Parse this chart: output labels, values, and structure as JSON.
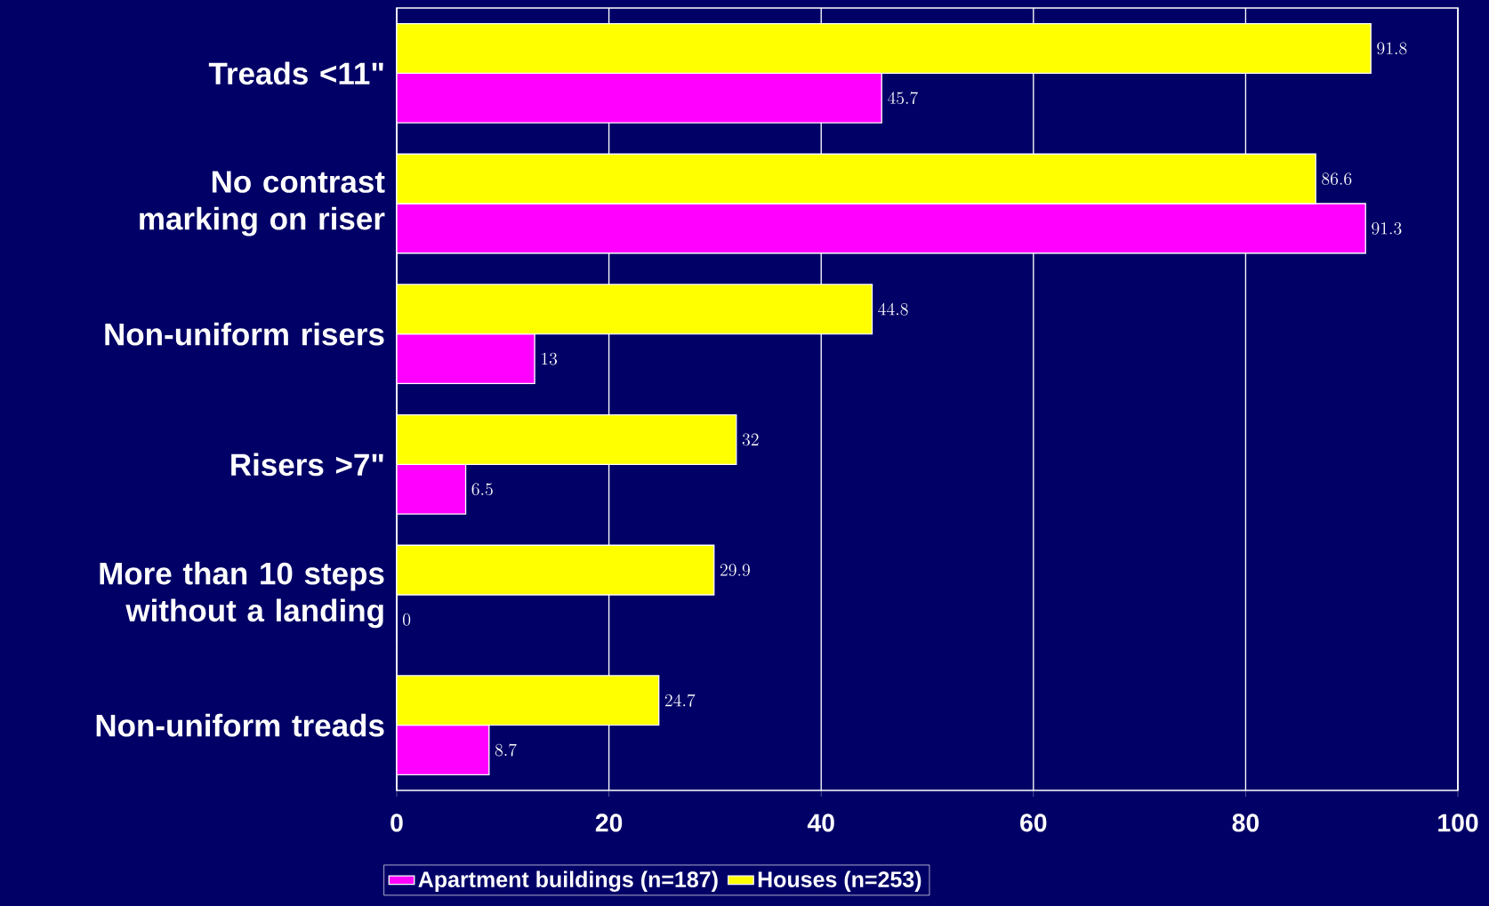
{
  "chart_data": {
    "type": "bar",
    "orientation": "horizontal",
    "categories": [
      "Treads <11\"",
      "No contrast marking on riser",
      "Non-uniform risers",
      "Risers >7\"",
      "More than 10 steps without a landing",
      "Non-uniform treads"
    ],
    "series": [
      {
        "name": "Apartment buildings (n=187)",
        "color": "#ff00ff",
        "values": [
          45.7,
          91.3,
          13,
          6.5,
          0,
          8.7
        ]
      },
      {
        "name": "Houses (n=253)",
        "color": "#ffff00",
        "values": [
          91.8,
          86.6,
          44.8,
          32,
          29.9,
          24.7
        ]
      }
    ],
    "xlim": [
      0,
      100
    ],
    "xticks": [
      0,
      20,
      40,
      60,
      80,
      100
    ],
    "grid": "x",
    "legend": "bottom",
    "data_labels": true
  }
}
